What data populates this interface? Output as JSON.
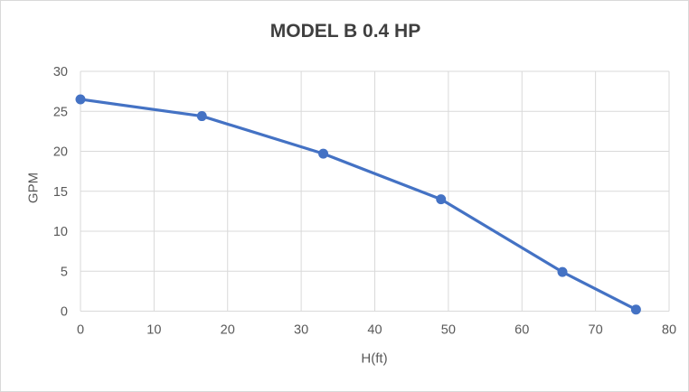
{
  "chart_data": {
    "type": "line",
    "title": "MODEL B 0.4 HP",
    "xlabel": "H(ft)",
    "ylabel": "GPM",
    "x": [
      0,
      16.5,
      33,
      49,
      65.5,
      75.5
    ],
    "y": [
      26.5,
      24.4,
      19.7,
      14.0,
      4.9,
      0.2
    ],
    "xlim": [
      0,
      80
    ],
    "ylim": [
      0,
      30
    ],
    "x_ticks": [
      0,
      10,
      20,
      30,
      40,
      50,
      60,
      70,
      80
    ],
    "y_ticks": [
      0,
      5,
      10,
      15,
      20,
      25,
      30
    ],
    "grid": true,
    "legend": false,
    "marker": "circle",
    "colors": {
      "series": "#4472C4",
      "gridline": "#D9D9D9",
      "tick_label": "#595959",
      "title": "#3F3F3F",
      "axis_title": "#595959",
      "frame_border": "#D9D9D9",
      "background": "#FFFFFF"
    }
  }
}
